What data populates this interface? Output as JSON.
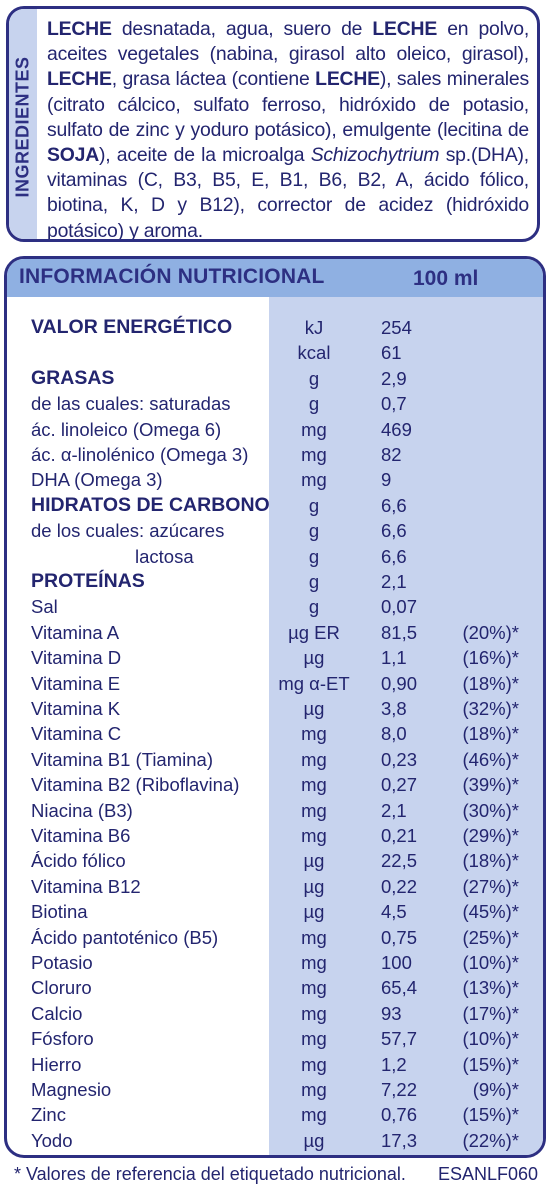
{
  "ingredients": {
    "side_label": "INGREDIENTES",
    "segments": [
      {
        "t": "LECHE",
        "b": true
      },
      {
        "t": " desnatada, agua, suero de "
      },
      {
        "t": "LECHE",
        "b": true
      },
      {
        "t": " en polvo, aceites vegetales (nabina, girasol alto oleico, girasol), "
      },
      {
        "t": "LECHE",
        "b": true
      },
      {
        "t": ", grasa láctea (contiene "
      },
      {
        "t": "LECHE",
        "b": true
      },
      {
        "t": "),  sales minerales (citrato cálcico, sulfato ferroso, hidróxido de potasio, sulfato de zinc y yoduro potásico), emulgente (lecitina de "
      },
      {
        "t": "SOJA",
        "b": true
      },
      {
        "t": "), aceite de la microalga "
      },
      {
        "t": "Schizochytrium",
        "i": true
      },
      {
        "t": " sp.(DHA), vitaminas (C, B3, B5, E, B1, B6, B2, A, ácido fólico, biotina, K, D y B12), corrector de acidez (hidróxido potásico) y aroma."
      }
    ]
  },
  "nutrition": {
    "title": "INFORMACIÓN NUTRICIONAL",
    "per": "100 ml",
    "rows": [
      {
        "name": "VALOR ENERGÉTICO",
        "bold": true,
        "unit": "kJ",
        "value": "254",
        "pct": ""
      },
      {
        "name": "",
        "unit": "kcal",
        "value": "61",
        "pct": ""
      },
      {
        "name": "GRASAS",
        "bold": true,
        "unit": "g",
        "value": "2,9",
        "pct": ""
      },
      {
        "name": "de las cuales: saturadas",
        "unit": "g",
        "value": "0,7",
        "pct": ""
      },
      {
        "name": "ác. linoleico (Omega 6)",
        "unit": "mg",
        "value": "469",
        "pct": ""
      },
      {
        "name": "ác. α-linolénico (Omega 3)",
        "unit": "mg",
        "value": "82",
        "pct": ""
      },
      {
        "name": "DHA (Omega 3)",
        "unit": "mg",
        "value": "9",
        "pct": ""
      },
      {
        "name": "HIDRATOS DE CARBONO",
        "bold": true,
        "unit": "g",
        "value": "6,6",
        "pct": ""
      },
      {
        "name": "de los cuales: azúcares",
        "unit": "g",
        "value": "6,6",
        "pct": ""
      },
      {
        "name": "lactosa",
        "indent": true,
        "unit": "g",
        "value": "6,6",
        "pct": ""
      },
      {
        "name": "PROTEÍNAS",
        "bold": true,
        "unit": "g",
        "value": "2,1",
        "pct": ""
      },
      {
        "name": "Sal",
        "unit": "g",
        "value": "0,07",
        "pct": ""
      },
      {
        "name": "Vitamina A",
        "unit": "µg ER",
        "value": "81,5",
        "pct": "(20%)*"
      },
      {
        "name": "Vitamina D",
        "unit": "µg",
        "value": "1,1",
        "pct": "(16%)*"
      },
      {
        "name": "Vitamina E",
        "unit": "mg α-ET",
        "value": "0,90",
        "pct": "(18%)*"
      },
      {
        "name": "Vitamina K",
        "unit": "µg",
        "value": "3,8",
        "pct": "(32%)*"
      },
      {
        "name": "Vitamina C",
        "unit": "mg",
        "value": "8,0",
        "pct": "(18%)*"
      },
      {
        "name": "Vitamina B1 (Tiamina)",
        "unit": "mg",
        "value": "0,23",
        "pct": "(46%)*"
      },
      {
        "name": "Vitamina B2 (Riboflavina)",
        "unit": "mg",
        "value": "0,27",
        "pct": "(39%)*"
      },
      {
        "name": "Niacina (B3)",
        "unit": "mg",
        "value": "2,1",
        "pct": "(30%)*"
      },
      {
        "name": "Vitamina B6",
        "unit": "mg",
        "value": "0,21",
        "pct": "(29%)*"
      },
      {
        "name": "Ácido fólico",
        "unit": "µg",
        "value": "22,5",
        "pct": "(18%)*"
      },
      {
        "name": "Vitamina B12",
        "unit": "µg",
        "value": "0,22",
        "pct": "(27%)*"
      },
      {
        "name": "Biotina",
        "unit": "µg",
        "value": "4,5",
        "pct": "(45%)*"
      },
      {
        "name": "Ácido pantoténico (B5)",
        "unit": "mg",
        "value": "0,75",
        "pct": "(25%)*"
      },
      {
        "name": "Potasio",
        "unit": "mg",
        "value": "100",
        "pct": "(10%)*"
      },
      {
        "name": "Cloruro",
        "unit": "mg",
        "value": "65,4",
        "pct": "(13%)*"
      },
      {
        "name": "Calcio",
        "unit": "mg",
        "value": "93",
        "pct": "(17%)*"
      },
      {
        "name": "Fósforo",
        "unit": "mg",
        "value": "57,7",
        "pct": "(10%)*"
      },
      {
        "name": "Hierro",
        "unit": "mg",
        "value": "1,2",
        "pct": "(15%)*"
      },
      {
        "name": "Magnesio",
        "unit": "mg",
        "value": "7,22",
        "pct": "(9%)*"
      },
      {
        "name": "Zinc",
        "unit": "mg",
        "value": "0,76",
        "pct": "(15%)*"
      },
      {
        "name": "Yodo",
        "unit": "µg",
        "value": "17,3",
        "pct": "(22%)*"
      }
    ]
  },
  "footer": {
    "note": "* Valores de referencia del etiquetado nutricional.",
    "code": "ESANLF060"
  },
  "colors": {
    "navy": "#2d2f82",
    "light_blue": "#c7d3ee",
    "header_blue": "#8fb0e2"
  }
}
